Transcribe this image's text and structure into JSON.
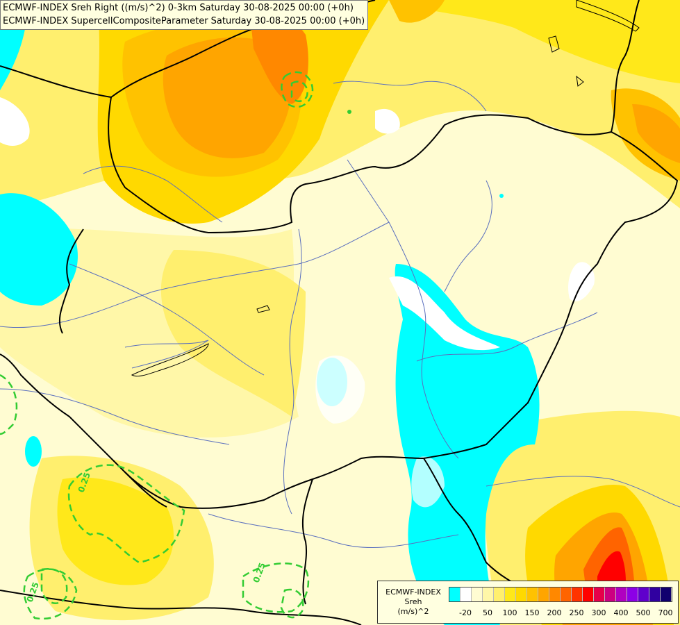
{
  "title_lines": [
    "ECMWF-INDEX Sreh Right ((m/s)^2) 0-3km Saturday 30-08-2025 00:00 (+0h)",
    "ECMWF-INDEX SupercellCompositeParameter Saturday 30-08-2025 00:00 (+0h)"
  ],
  "contour_labels": [
    "0.25",
    "0.25",
    "0.25"
  ],
  "legend": {
    "source": "ECMWF-INDEX",
    "variable": "Sreh",
    "unit": "(m/s)^2",
    "colors": [
      "#00ffff",
      "#ffffff",
      "#fffcd2",
      "#fff7a8",
      "#ffef6e",
      "#ffe81a",
      "#ffd900",
      "#ffc200",
      "#ffa500",
      "#ff8800",
      "#ff6400",
      "#ff3300",
      "#ff0000",
      "#e6004a",
      "#cc0080",
      "#b000c0",
      "#8c00e6",
      "#6000cc",
      "#3000a0",
      "#10006e"
    ],
    "tick_labels": [
      "-20",
      "50",
      "100",
      "150",
      "200",
      "250",
      "300",
      "400",
      "500",
      "700"
    ]
  },
  "colors": {
    "contour": "#33cc33",
    "border": "#000000",
    "river": "#5a6fbe"
  }
}
